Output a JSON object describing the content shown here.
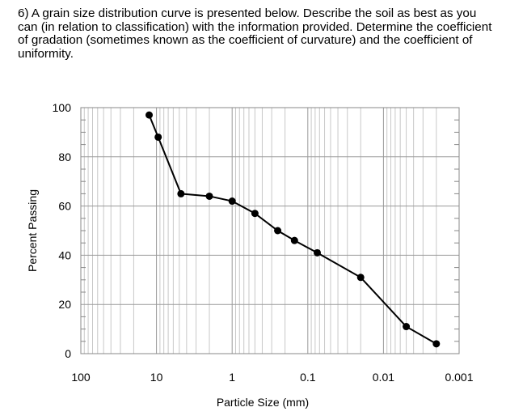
{
  "question": "6) A grain size distribution curve is presented below.  Describe the soil as best as you can (in relation to classification) with the information provided. Determine the coefficient of gradation (sometimes known as the coefficient of curvature) and the coefficient of uniformity.",
  "chart_data": {
    "type": "line",
    "title": "",
    "xlabel": "Particle Size (mm)",
    "ylabel": "Percent Passing",
    "x_scale": "log",
    "x_reversed": true,
    "xlim": [
      100,
      0.001
    ],
    "ylim": [
      0,
      100
    ],
    "x_ticks": [
      "100",
      "10",
      "1",
      "0.1",
      "0.01",
      "0.001"
    ],
    "y_ticks": [
      "0",
      "20",
      "40",
      "60",
      "80",
      "100"
    ],
    "grid": true,
    "marker": "filled-circle",
    "line_color": "#000000",
    "x": [
      12.5,
      9.5,
      4.75,
      2.0,
      1.0,
      0.5,
      0.25,
      0.15,
      0.075,
      0.02,
      0.005,
      0.002
    ],
    "y": [
      97,
      88,
      65,
      64,
      62,
      57,
      50,
      46,
      41,
      31,
      11,
      4
    ]
  }
}
